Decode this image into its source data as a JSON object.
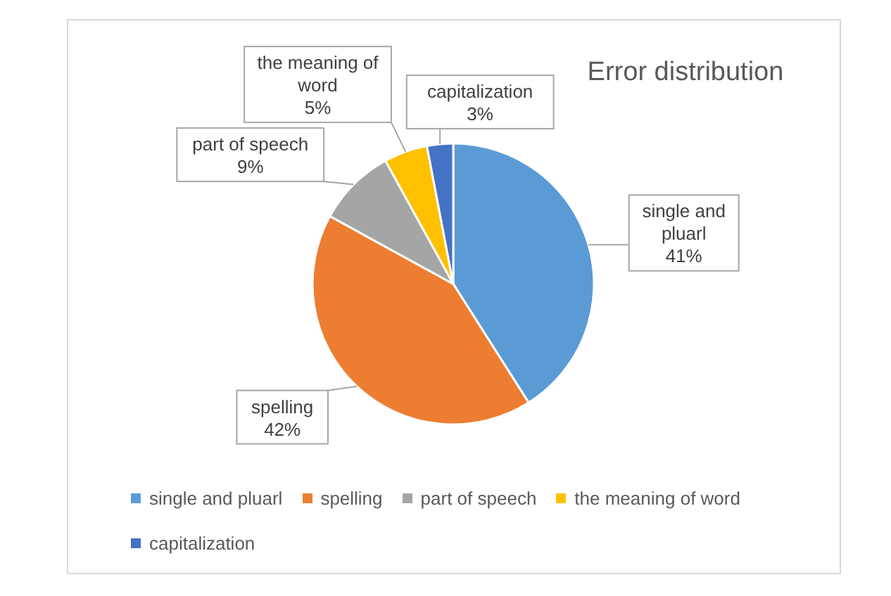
{
  "chart_data": {
    "type": "pie",
    "title": "Error distribution",
    "categories": [
      "single and pluarl",
      "spelling",
      "part of speech",
      "the meaning of word",
      "capitalization"
    ],
    "values": [
      41,
      42,
      9,
      5,
      3
    ],
    "colors": [
      "#5b9bd5",
      "#ed7d31",
      "#a5a5a5",
      "#ffc000",
      "#4472c4"
    ],
    "value_labels": [
      "41%",
      "42%",
      "9%",
      "5%",
      "3%"
    ],
    "legend": "bottom"
  }
}
